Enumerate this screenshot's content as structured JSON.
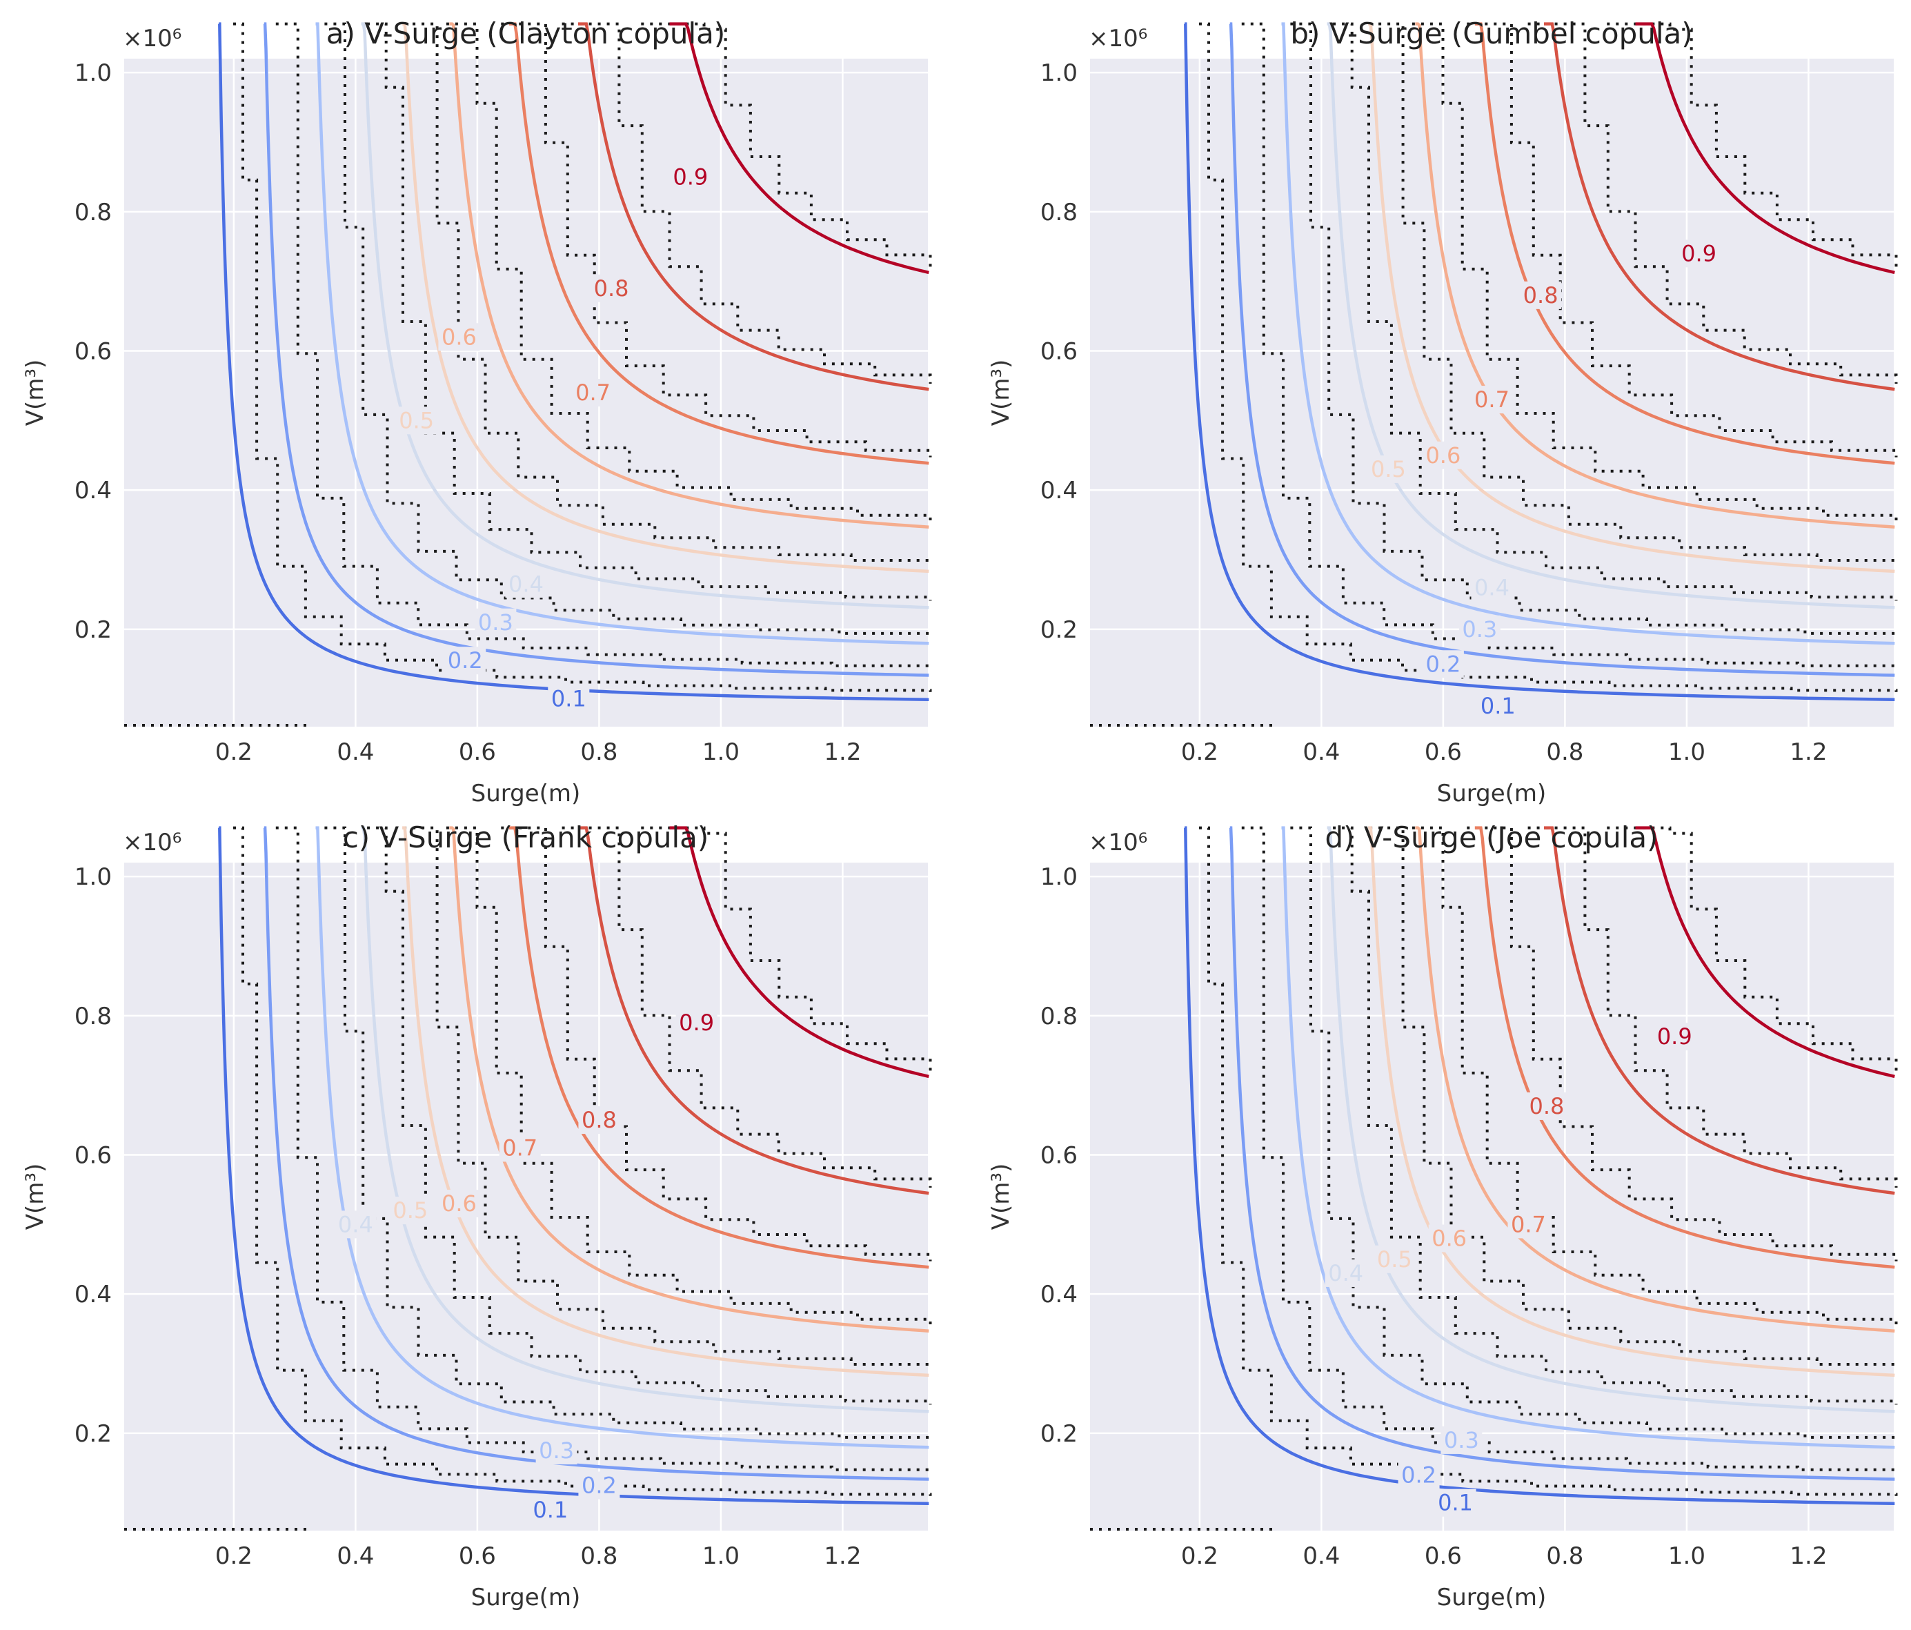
{
  "chart_data": [
    {
      "type": "contour",
      "title": "a) V-Surge (Clayton copula)",
      "xlabel": "Surge(m)",
      "ylabel": "V(m³)",
      "y_multiplier": "×10⁶",
      "xlim": [
        0.02,
        1.34
      ],
      "ylim": [
        0.06,
        1.02
      ],
      "xticks": [
        "0.2",
        "0.4",
        "0.6",
        "0.8",
        "1.0",
        "1.2"
      ],
      "yticks": [
        "0.2",
        "0.4",
        "0.6",
        "0.8",
        "1.0"
      ],
      "levels": [
        {
          "label": "0.1",
          "value": 0.1,
          "color": "#4a6fe3",
          "x_asym": 0.16,
          "y_asym": 0.085,
          "label_pos": [
            0.75,
            0.1
          ]
        },
        {
          "label": "0.2",
          "value": 0.2,
          "color": "#7a9cf5",
          "x_asym": 0.23,
          "y_asym": 0.115,
          "label_pos": [
            0.58,
            0.155
          ]
        },
        {
          "label": "0.3",
          "value": 0.3,
          "color": "#a7c1fa",
          "x_asym": 0.31,
          "y_asym": 0.155,
          "label_pos": [
            0.63,
            0.21
          ]
        },
        {
          "label": "0.4",
          "value": 0.4,
          "color": "#d2dcee",
          "x_asym": 0.38,
          "y_asym": 0.2,
          "label_pos": [
            0.68,
            0.265
          ]
        },
        {
          "label": "0.5",
          "value": 0.5,
          "color": "#f4d3c1",
          "x_asym": 0.44,
          "y_asym": 0.245,
          "label_pos": [
            0.5,
            0.5
          ]
        },
        {
          "label": "0.6",
          "value": 0.6,
          "color": "#f5ad8e",
          "x_asym": 0.51,
          "y_asym": 0.3,
          "label_pos": [
            0.57,
            0.62
          ]
        },
        {
          "label": "0.7",
          "value": 0.7,
          "color": "#ea7f61",
          "x_asym": 0.6,
          "y_asym": 0.38,
          "label_pos": [
            0.79,
            0.54
          ]
        },
        {
          "label": "0.8",
          "value": 0.8,
          "color": "#d65244",
          "x_asym": 0.7,
          "y_asym": 0.47,
          "label_pos": [
            0.82,
            0.69
          ]
        },
        {
          "label": "0.9",
          "value": 0.9,
          "color": "#b40426",
          "x_asym": 0.83,
          "y_asym": 0.61,
          "label_pos": [
            0.95,
            0.85
          ]
        }
      ]
    },
    {
      "type": "contour",
      "title": "b) V-Surge (Gumbel copula)",
      "xlabel": "Surge(m)",
      "ylabel": "V(m³)",
      "y_multiplier": "×10⁶",
      "xlim": [
        0.02,
        1.34
      ],
      "ylim": [
        0.06,
        1.02
      ],
      "xticks": [
        "0.2",
        "0.4",
        "0.6",
        "0.8",
        "1.0",
        "1.2"
      ],
      "yticks": [
        "0.2",
        "0.4",
        "0.6",
        "0.8",
        "1.0"
      ],
      "levels": [
        {
          "label": "0.1",
          "value": 0.1,
          "color": "#4a6fe3",
          "x_asym": 0.16,
          "y_asym": 0.085,
          "label_pos": [
            0.69,
            0.09
          ]
        },
        {
          "label": "0.2",
          "value": 0.2,
          "color": "#7a9cf5",
          "x_asym": 0.23,
          "y_asym": 0.115,
          "label_pos": [
            0.6,
            0.15
          ]
        },
        {
          "label": "0.3",
          "value": 0.3,
          "color": "#a7c1fa",
          "x_asym": 0.31,
          "y_asym": 0.155,
          "label_pos": [
            0.66,
            0.2
          ]
        },
        {
          "label": "0.4",
          "value": 0.4,
          "color": "#d2dcee",
          "x_asym": 0.38,
          "y_asym": 0.2,
          "label_pos": [
            0.68,
            0.26
          ]
        },
        {
          "label": "0.5",
          "value": 0.5,
          "color": "#f4d3c1",
          "x_asym": 0.44,
          "y_asym": 0.245,
          "label_pos": [
            0.51,
            0.43
          ]
        },
        {
          "label": "0.6",
          "value": 0.6,
          "color": "#f5ad8e",
          "x_asym": 0.51,
          "y_asym": 0.3,
          "label_pos": [
            0.6,
            0.45
          ]
        },
        {
          "label": "0.7",
          "value": 0.7,
          "color": "#ea7f61",
          "x_asym": 0.6,
          "y_asym": 0.38,
          "label_pos": [
            0.68,
            0.53
          ]
        },
        {
          "label": "0.8",
          "value": 0.8,
          "color": "#d65244",
          "x_asym": 0.7,
          "y_asym": 0.47,
          "label_pos": [
            0.76,
            0.68
          ]
        },
        {
          "label": "0.9",
          "value": 0.9,
          "color": "#b40426",
          "x_asym": 0.83,
          "y_asym": 0.61,
          "label_pos": [
            1.02,
            0.74
          ]
        }
      ]
    },
    {
      "type": "contour",
      "title": "c) V-Surge (Frank copula)",
      "xlabel": "Surge(m)",
      "ylabel": "V(m³)",
      "y_multiplier": "×10⁶",
      "xlim": [
        0.02,
        1.34
      ],
      "ylim": [
        0.06,
        1.02
      ],
      "xticks": [
        "0.2",
        "0.4",
        "0.6",
        "0.8",
        "1.0",
        "1.2"
      ],
      "yticks": [
        "0.2",
        "0.4",
        "0.6",
        "0.8",
        "1.0"
      ],
      "levels": [
        {
          "label": "0.1",
          "value": 0.1,
          "color": "#4a6fe3",
          "x_asym": 0.16,
          "y_asym": 0.085,
          "label_pos": [
            0.72,
            0.09
          ]
        },
        {
          "label": "0.2",
          "value": 0.2,
          "color": "#7a9cf5",
          "x_asym": 0.23,
          "y_asym": 0.115,
          "label_pos": [
            0.8,
            0.125
          ]
        },
        {
          "label": "0.3",
          "value": 0.3,
          "color": "#a7c1fa",
          "x_asym": 0.31,
          "y_asym": 0.155,
          "label_pos": [
            0.73,
            0.175
          ]
        },
        {
          "label": "0.4",
          "value": 0.4,
          "color": "#d2dcee",
          "x_asym": 0.38,
          "y_asym": 0.2,
          "label_pos": [
            0.4,
            0.5
          ]
        },
        {
          "label": "0.5",
          "value": 0.5,
          "color": "#f4d3c1",
          "x_asym": 0.44,
          "y_asym": 0.245,
          "label_pos": [
            0.49,
            0.52
          ]
        },
        {
          "label": "0.6",
          "value": 0.6,
          "color": "#f5ad8e",
          "x_asym": 0.51,
          "y_asym": 0.3,
          "label_pos": [
            0.57,
            0.53
          ]
        },
        {
          "label": "0.7",
          "value": 0.7,
          "color": "#ea7f61",
          "x_asym": 0.6,
          "y_asym": 0.38,
          "label_pos": [
            0.67,
            0.61
          ]
        },
        {
          "label": "0.8",
          "value": 0.8,
          "color": "#d65244",
          "x_asym": 0.7,
          "y_asym": 0.47,
          "label_pos": [
            0.8,
            0.65
          ]
        },
        {
          "label": "0.9",
          "value": 0.9,
          "color": "#b40426",
          "x_asym": 0.83,
          "y_asym": 0.61,
          "label_pos": [
            0.96,
            0.79
          ]
        }
      ]
    },
    {
      "type": "contour",
      "title": "d) V-Surge (Joe copula)",
      "xlabel": "Surge(m)",
      "ylabel": "V(m³)",
      "y_multiplier": "×10⁶",
      "xlim": [
        0.02,
        1.34
      ],
      "ylim": [
        0.06,
        1.02
      ],
      "xticks": [
        "0.2",
        "0.4",
        "0.6",
        "0.8",
        "1.0",
        "1.2"
      ],
      "yticks": [
        "0.2",
        "0.4",
        "0.6",
        "0.8",
        "1.0"
      ],
      "levels": [
        {
          "label": "0.1",
          "value": 0.1,
          "color": "#4a6fe3",
          "x_asym": 0.16,
          "y_asym": 0.085,
          "label_pos": [
            0.62,
            0.1
          ]
        },
        {
          "label": "0.2",
          "value": 0.2,
          "color": "#7a9cf5",
          "x_asym": 0.23,
          "y_asym": 0.115,
          "label_pos": [
            0.56,
            0.14
          ]
        },
        {
          "label": "0.3",
          "value": 0.3,
          "color": "#a7c1fa",
          "x_asym": 0.31,
          "y_asym": 0.155,
          "label_pos": [
            0.63,
            0.19
          ]
        },
        {
          "label": "0.4",
          "value": 0.4,
          "color": "#d2dcee",
          "x_asym": 0.38,
          "y_asym": 0.2,
          "label_pos": [
            0.44,
            0.43
          ]
        },
        {
          "label": "0.5",
          "value": 0.5,
          "color": "#f4d3c1",
          "x_asym": 0.44,
          "y_asym": 0.245,
          "label_pos": [
            0.52,
            0.45
          ]
        },
        {
          "label": "0.6",
          "value": 0.6,
          "color": "#f5ad8e",
          "x_asym": 0.51,
          "y_asym": 0.3,
          "label_pos": [
            0.61,
            0.48
          ]
        },
        {
          "label": "0.7",
          "value": 0.7,
          "color": "#ea7f61",
          "x_asym": 0.6,
          "y_asym": 0.38,
          "label_pos": [
            0.74,
            0.5
          ]
        },
        {
          "label": "0.8",
          "value": 0.8,
          "color": "#d65244",
          "x_asym": 0.7,
          "y_asym": 0.47,
          "label_pos": [
            0.77,
            0.67
          ]
        },
        {
          "label": "0.9",
          "value": 0.9,
          "color": "#b40426",
          "x_asym": 0.83,
          "y_asym": 0.61,
          "label_pos": [
            0.98,
            0.77
          ]
        }
      ]
    }
  ]
}
